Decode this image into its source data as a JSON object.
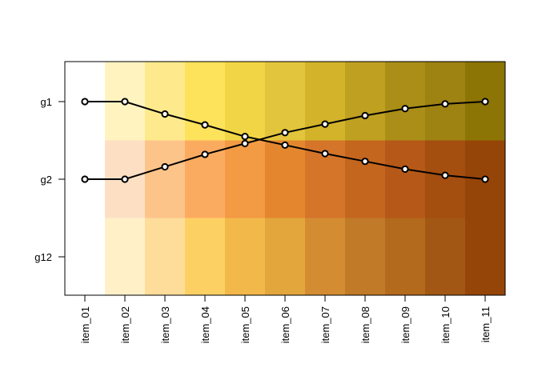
{
  "chart_data": {
    "type": "heatmap",
    "title": "",
    "xlabel": "",
    "ylabel": "",
    "categories": [
      "item_01",
      "item_02",
      "item_03",
      "item_04",
      "item_05",
      "item_06",
      "item_07",
      "item_08",
      "item_09",
      "item_10",
      "item_11"
    ],
    "rows": [
      "g1",
      "g2",
      "g12"
    ],
    "cell_colors": {
      "g1": [
        "#ffffff",
        "#fff4c0",
        "#feea8c",
        "#fde25c",
        "#f2d544",
        "#e2c53c",
        "#d3b32a",
        "#bfa020",
        "#aa8e18",
        "#9e8212",
        "#8c7405"
      ],
      "g2": [
        "#ffffff",
        "#fde0c4",
        "#fdc48a",
        "#fbab60",
        "#f39a44",
        "#e4862e",
        "#d4752a",
        "#c4661e",
        "#b55818",
        "#a44e10",
        "#964508"
      ],
      "g12": [
        "#ffffff",
        "#fff0c8",
        "#fedc9a",
        "#fdd064",
        "#f3b84a",
        "#e2a63c",
        "#d38c32",
        "#c07a28",
        "#b36a1c",
        "#a25814",
        "#964508"
      ]
    },
    "series": [
      {
        "row": "g1",
        "values": [
          1.0,
          1.0,
          0.84,
          0.7,
          0.55,
          0.44,
          0.33,
          0.23,
          0.13,
          0.05,
          0.0
        ]
      },
      {
        "row": "g2",
        "values": [
          0.0,
          0.0,
          0.16,
          0.32,
          0.46,
          0.6,
          0.71,
          0.82,
          0.91,
          0.97,
          1.0
        ]
      }
    ],
    "grid": false,
    "legend": "none"
  }
}
